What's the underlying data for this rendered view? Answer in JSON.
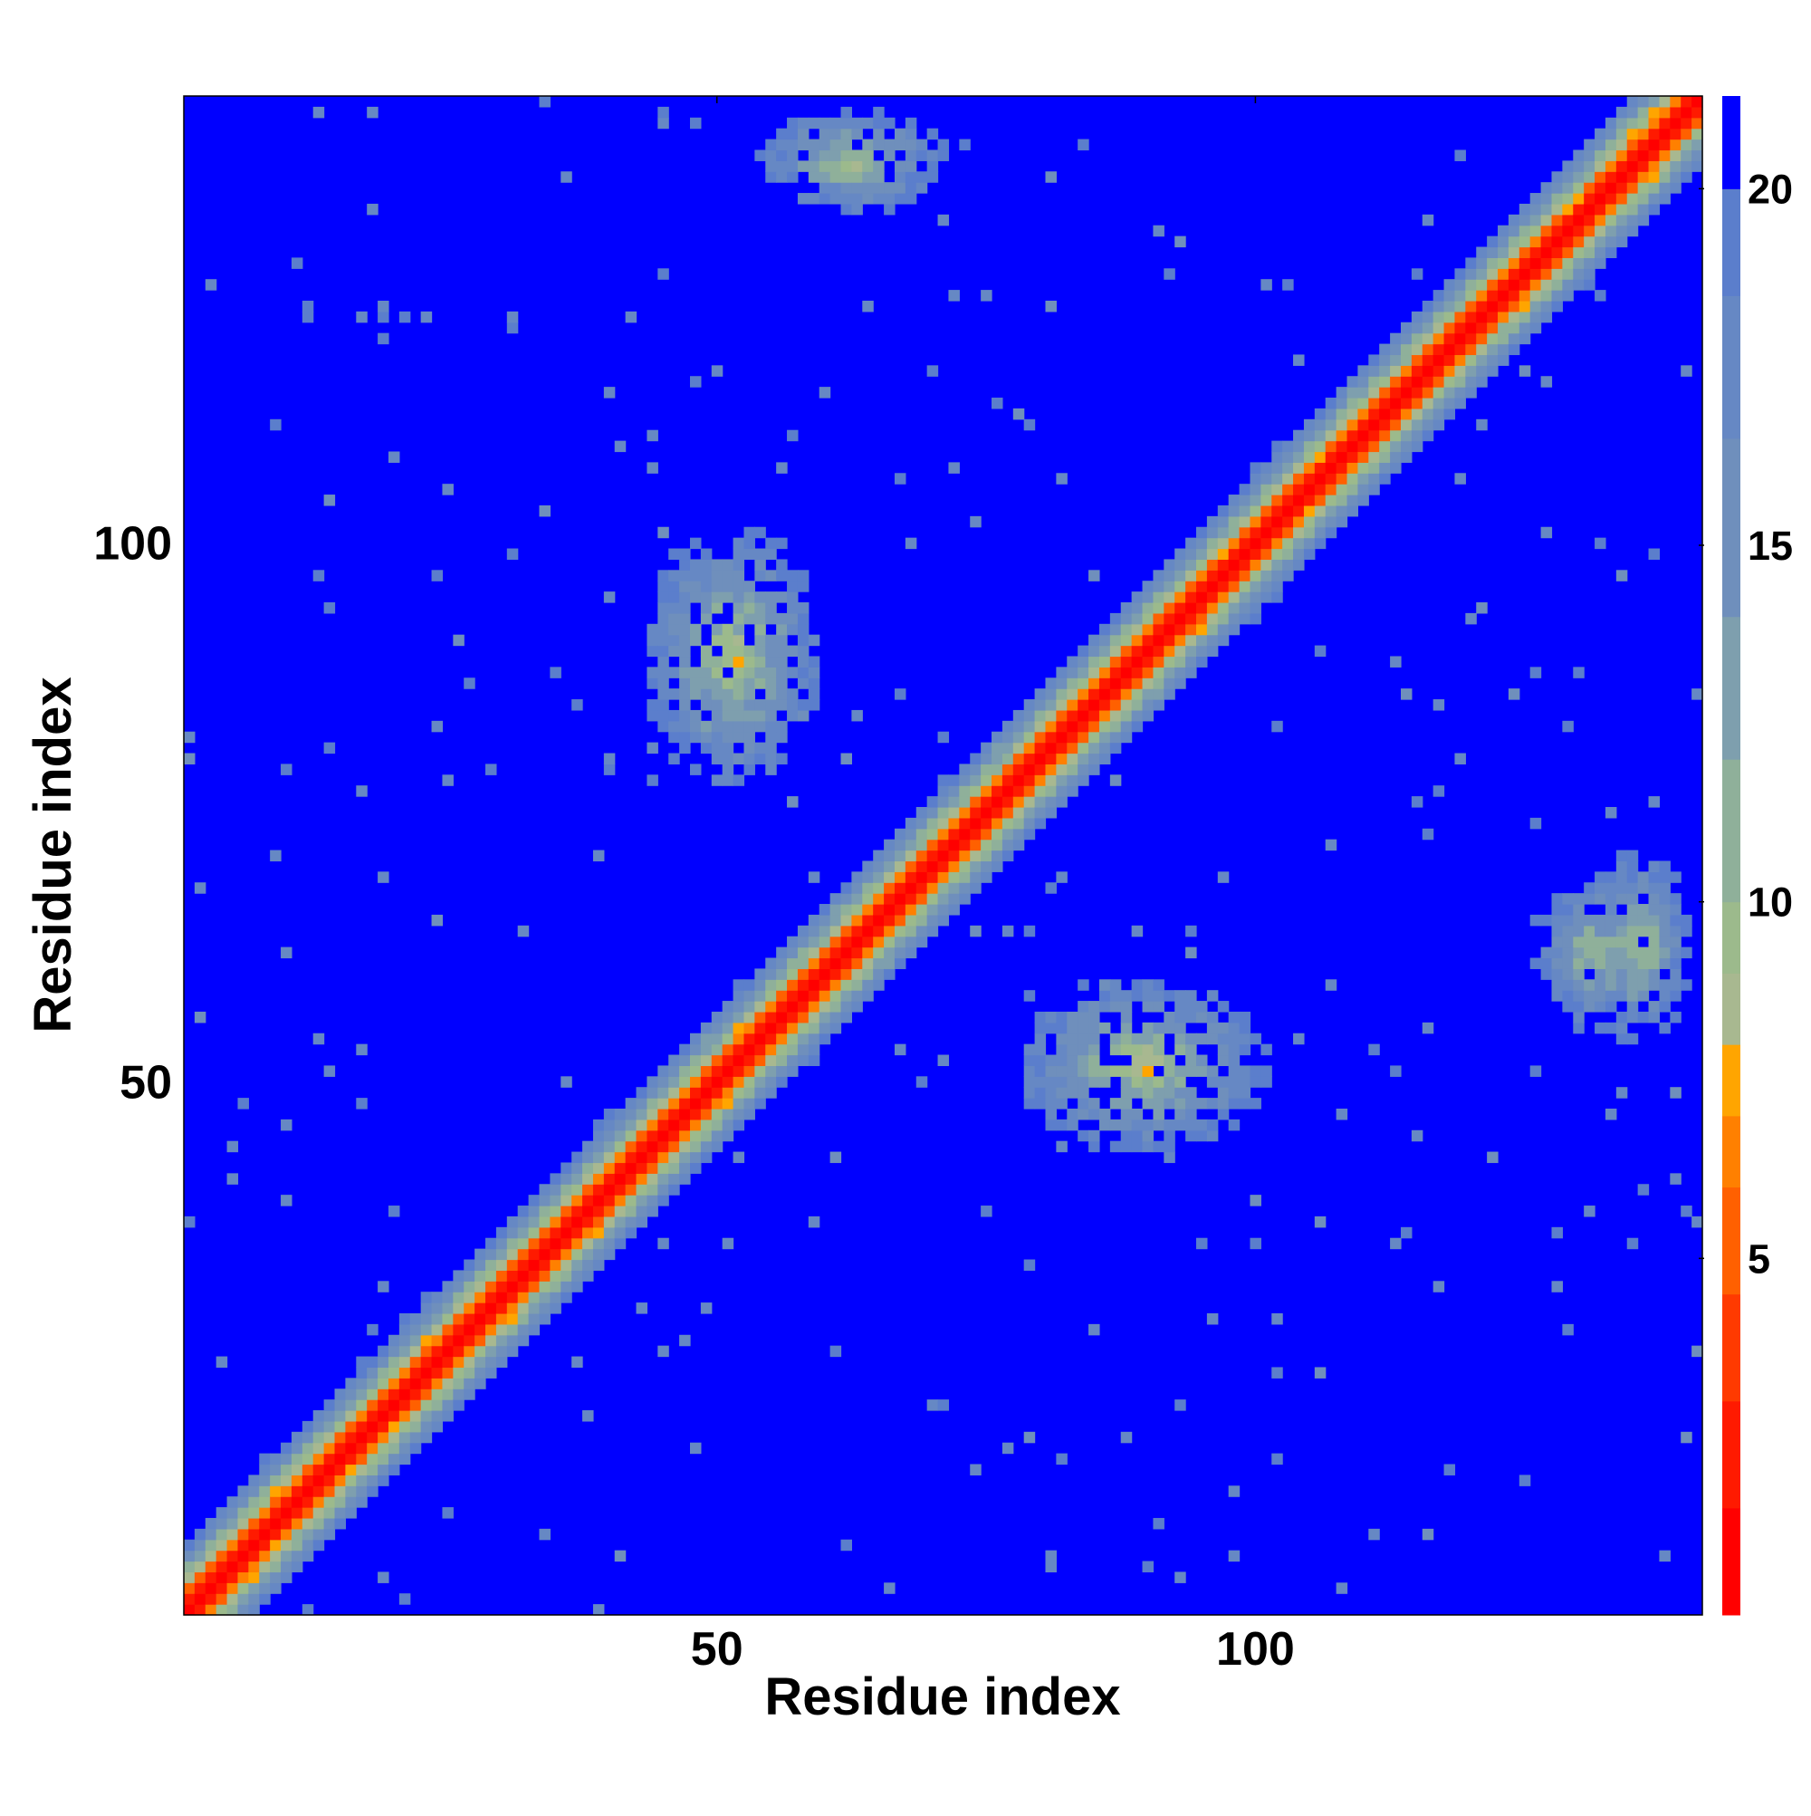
{
  "chart_data": {
    "type": "heatmap",
    "title": "",
    "xlabel": "Residue index",
    "ylabel": "Residue index",
    "n_residues": 141,
    "xlim": [
      1,
      141
    ],
    "ylim": [
      1,
      141
    ],
    "x_ticks": [
      50,
      100
    ],
    "y_ticks": [
      50,
      100
    ],
    "colorbar": {
      "range": [
        0,
        21.3
      ],
      "ticks": [
        5,
        10,
        15,
        20
      ],
      "levels": [
        {
          "max": 1.5,
          "color": "#ff0000"
        },
        {
          "max": 3.0,
          "color": "#ff1a00"
        },
        {
          "max": 4.5,
          "color": "#ff3a00"
        },
        {
          "max": 6.0,
          "color": "#ff6000"
        },
        {
          "max": 7.0,
          "color": "#ff8000"
        },
        {
          "max": 8.0,
          "color": "#ffa500"
        },
        {
          "max": 9.0,
          "color": "#a8b890"
        },
        {
          "max": 10.0,
          "color": "#9cba8c"
        },
        {
          "max": 12.0,
          "color": "#8fb09a"
        },
        {
          "max": 14.0,
          "color": "#7e9fae"
        },
        {
          "max": 16.5,
          "color": "#6f8fbc"
        },
        {
          "max": 18.5,
          "color": "#6688c4"
        },
        {
          "max": 20.0,
          "color": "#5b7ecc"
        },
        {
          "max": 21.3,
          "color": "#0000ff"
        }
      ]
    },
    "description_of_values": "Pairwise residue distance map; diagonal band (i≈j) holds the smallest distances, background is the saturated maximum.",
    "diagonal_band": {
      "distance_per_residue_offset": 3.0,
      "min_distance": 0.5
    },
    "contact_clusters": [
      {
        "i_range": [
          43,
          60
        ],
        "j_range": [
          77,
          102
        ],
        "min_distance": 5.5
      },
      {
        "i_range": [
          77,
          102
        ],
        "j_range": [
          43,
          60
        ],
        "min_distance": 5.5
      },
      {
        "i_range": [
          130,
          141
        ],
        "j_range": [
          53,
          72
        ],
        "min_distance": 6.5
      },
      {
        "i_range": [
          53,
          72
        ],
        "j_range": [
          130,
          141
        ],
        "min_distance": 6.5
      },
      {
        "i_range": [
          9,
          14
        ],
        "j_range": [
          4,
          12
        ],
        "min_distance": 12.0
      },
      {
        "i_range": [
          4,
          12
        ],
        "j_range": [
          9,
          14
        ],
        "min_distance": 12.0
      },
      {
        "i_range": [
          125,
          138
        ],
        "j_range": [
          54,
          70
        ],
        "min_distance": 7.0
      }
    ]
  }
}
